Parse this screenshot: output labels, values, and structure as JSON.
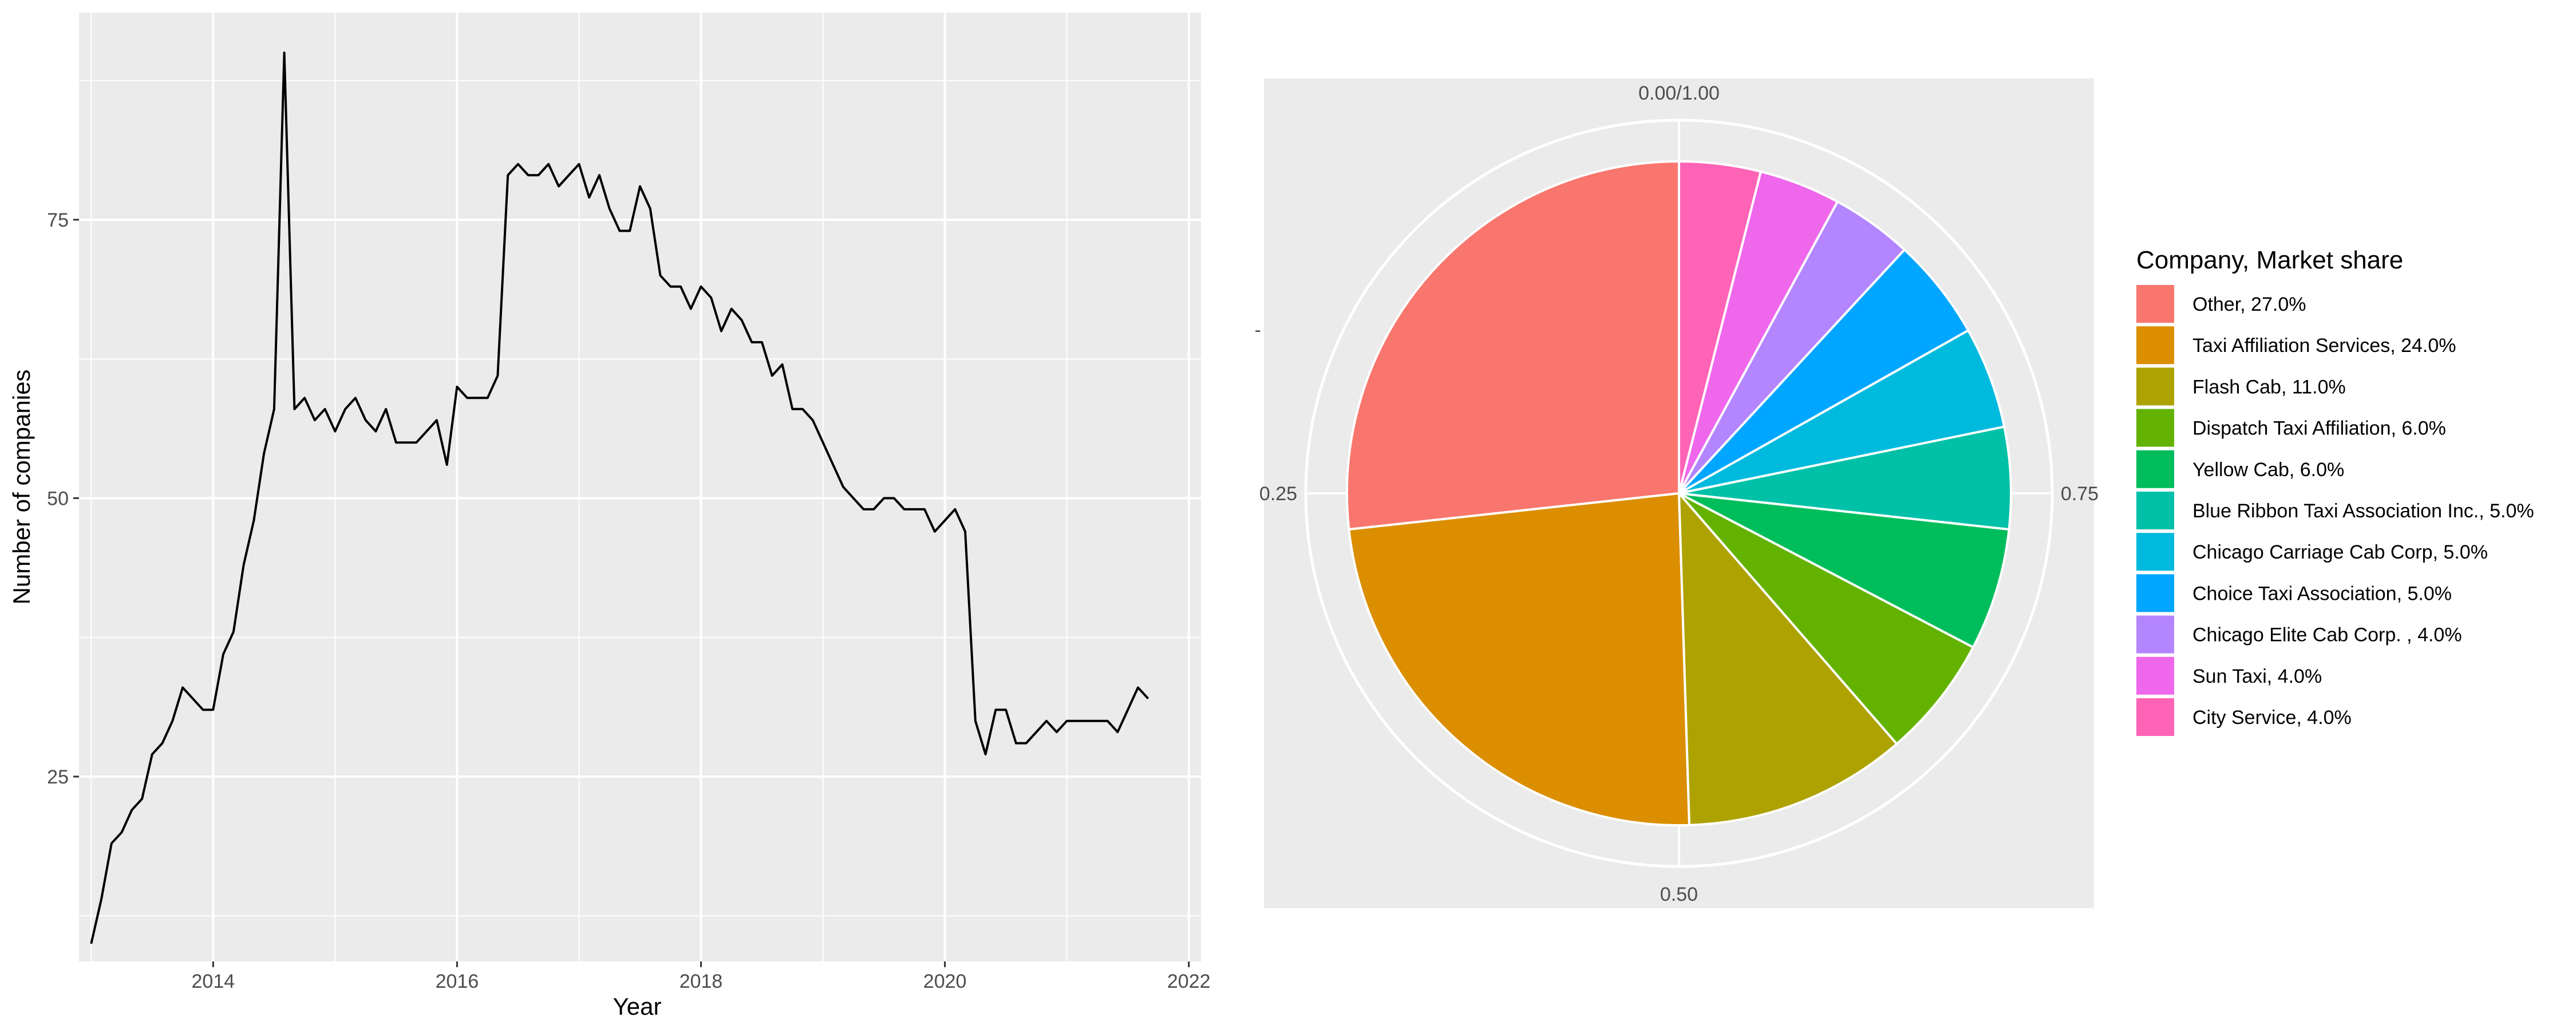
{
  "chart_data": [
    {
      "type": "line",
      "title": "",
      "xlabel": "Year",
      "ylabel": "Number of companies",
      "xlim": [
        2012.9,
        2022.1
      ],
      "ylim": [
        8.4,
        93.6
      ],
      "x_ticks": [
        2014,
        2016,
        2018,
        2020,
        2022
      ],
      "x_tick_labels": [
        "2014",
        "2016",
        "2018",
        "2020",
        "2022"
      ],
      "y_ticks": [
        25,
        50,
        75
      ],
      "y_tick_labels": [
        "25",
        "50",
        "75"
      ],
      "grid": true,
      "line_color": "#000000",
      "background": "#ebebeb",
      "series": [
        {
          "x": [
            "2013-01",
            "2013-02",
            "2013-03",
            "2013-04",
            "2013-05",
            "2013-06",
            "2013-07",
            "2013-08",
            "2013-09",
            "2013-10",
            "2013-11",
            "2013-12",
            "2014-01",
            "2014-02",
            "2014-03",
            "2014-04",
            "2014-05",
            "2014-06",
            "2014-07",
            "2014-08",
            "2014-09",
            "2014-10",
            "2014-11",
            "2014-12",
            "2015-01",
            "2015-02",
            "2015-03",
            "2015-04",
            "2015-05",
            "2015-06",
            "2015-07",
            "2015-08",
            "2015-09",
            "2015-10",
            "2015-11",
            "2015-12",
            "2016-01",
            "2016-02",
            "2016-03",
            "2016-04",
            "2016-05",
            "2016-06",
            "2016-07",
            "2016-08",
            "2016-09",
            "2016-10",
            "2016-11",
            "2016-12",
            "2017-01",
            "2017-02",
            "2017-03",
            "2017-04",
            "2017-05",
            "2017-06",
            "2017-07",
            "2017-08",
            "2017-09",
            "2017-10",
            "2017-11",
            "2017-12",
            "2018-01",
            "2018-02",
            "2018-03",
            "2018-04",
            "2018-05",
            "2018-06",
            "2018-07",
            "2018-08",
            "2018-09",
            "2018-10",
            "2018-11",
            "2018-12",
            "2019-01",
            "2019-02",
            "2019-03",
            "2019-04",
            "2019-05",
            "2019-06",
            "2019-07",
            "2019-08",
            "2019-09",
            "2019-10",
            "2019-11",
            "2019-12",
            "2020-01",
            "2020-02",
            "2020-03",
            "2020-04",
            "2020-05",
            "2020-06",
            "2020-07",
            "2020-08",
            "2020-09",
            "2020-10",
            "2020-11",
            "2020-12",
            "2021-01",
            "2021-02",
            "2021-03",
            "2021-04",
            "2021-05",
            "2021-06",
            "2021-07",
            "2021-08",
            "2021-09"
          ],
          "values": [
            10,
            14,
            19,
            20,
            22,
            23,
            27,
            28,
            30,
            33,
            32,
            31,
            31,
            36,
            38,
            44,
            48,
            54,
            58,
            90,
            58,
            59,
            57,
            58,
            56,
            58,
            59,
            57,
            56,
            58,
            55,
            55,
            55,
            56,
            57,
            53,
            60,
            59,
            59,
            59,
            61,
            79,
            80,
            79,
            79,
            80,
            78,
            79,
            80,
            77,
            79,
            76,
            74,
            74,
            78,
            76,
            70,
            69,
            69,
            67,
            69,
            68,
            65,
            67,
            66,
            64,
            64,
            61,
            62,
            58,
            58,
            57,
            55,
            53,
            51,
            50,
            49,
            49,
            50,
            50,
            49,
            49,
            49,
            47,
            48,
            49,
            47,
            30,
            27,
            31,
            31,
            28,
            28,
            29,
            30,
            29,
            30,
            30,
            30,
            30,
            30,
            29,
            31,
            33,
            32
          ]
        }
      ]
    },
    {
      "type": "pie",
      "title": "",
      "legend_title": "Company, Market share",
      "legend_position": "right",
      "theta_ticks": [
        0,
        0.25,
        0.5,
        0.75
      ],
      "theta_tick_labels": [
        "0.00/1.00",
        "0.25",
        "0.50",
        "0.75"
      ],
      "y_axis_tick": "-",
      "background": "#ebebeb",
      "direction": "counterclockwise from top",
      "slices": [
        {
          "name": "Other",
          "value": 27.0,
          "label": "Other, 27.0%",
          "color": "#F8766D"
        },
        {
          "name": "Taxi Affiliation Services",
          "value": 24.0,
          "label": "Taxi Affiliation Services, 24.0%",
          "color": "#DB8E00"
        },
        {
          "name": "Flash Cab",
          "value": 11.0,
          "label": "Flash Cab, 11.0%",
          "color": "#AEA200"
        },
        {
          "name": "Dispatch Taxi Affiliation",
          "value": 6.0,
          "label": "Dispatch Taxi Affiliation, 6.0%",
          "color": "#64B200"
        },
        {
          "name": "Yellow Cab",
          "value": 6.0,
          "label": "Yellow Cab, 6.0%",
          "color": "#00BD5C"
        },
        {
          "name": "Blue Ribbon Taxi Association Inc.",
          "value": 5.0,
          "label": "Blue Ribbon Taxi Association Inc., 5.0%",
          "color": "#00C1A7"
        },
        {
          "name": "Chicago Carriage Cab Corp",
          "value": 5.0,
          "label": "Chicago Carriage Cab Corp, 5.0%",
          "color": "#00BADE"
        },
        {
          "name": "Choice Taxi Association",
          "value": 5.0,
          "label": "Choice Taxi Association, 5.0%",
          "color": "#00A6FF"
        },
        {
          "name": "Chicago Elite Cab Corp. ",
          "value": 4.0,
          "label": "Chicago Elite Cab Corp. , 4.0%",
          "color": "#B385FF"
        },
        {
          "name": "Sun Taxi",
          "value": 4.0,
          "label": "Sun Taxi, 4.0%",
          "color": "#EF67EB"
        },
        {
          "name": "City Service",
          "value": 4.0,
          "label": "City Service, 4.0%",
          "color": "#FF63B6"
        }
      ]
    }
  ]
}
